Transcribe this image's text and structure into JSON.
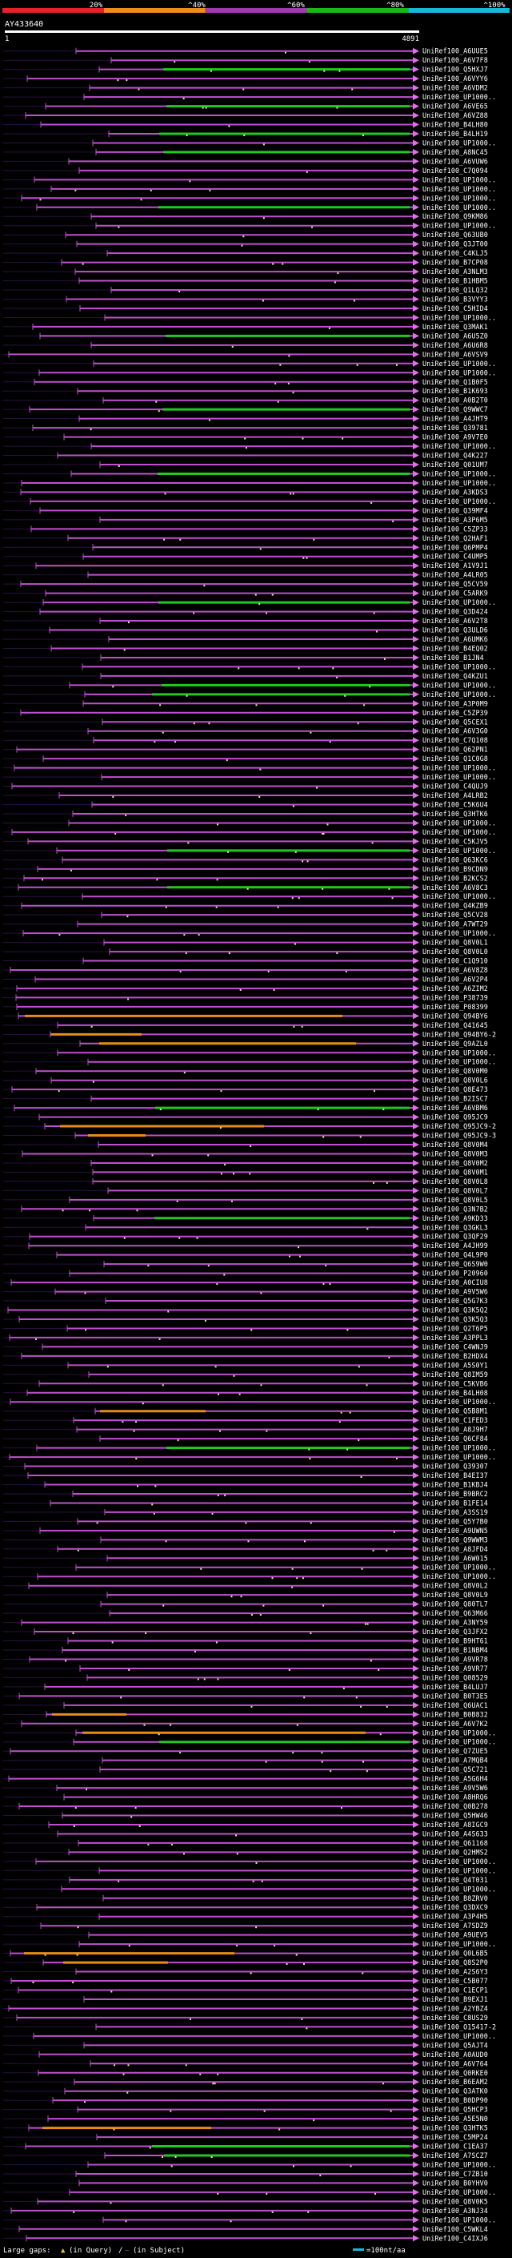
{
  "chart_data": {
    "type": "alignment-overview",
    "query_id": "AY433640",
    "query_start": "1",
    "query_end": "4891",
    "identity_scale": [
      "20%",
      "^40%",
      "^60%",
      "^80%",
      "^100%"
    ],
    "identity_colors": [
      "#e8202a",
      "#f08c1a",
      "#a03ab0",
      "#18b818",
      "#18b8d8"
    ],
    "legend_text": "Large gaps:",
    "legend_in_query": "(in Query)",
    "legend_in_subject": "(in Subject)",
    "legend_scale": "=100nt/aa",
    "hits": [
      {
        "label": "UniRef100_A6UUE5",
        "c": "p"
      },
      {
        "label": "UniRef100_A6V7F8",
        "c": "p"
      },
      {
        "label": "UniRef100_Q5HXJ7",
        "c": "g"
      },
      {
        "label": "UniRef100_A6VYY6",
        "c": "p"
      },
      {
        "label": "UniRef100_A6VDM2",
        "c": "p"
      },
      {
        "label": "UniRef100_UP1000..",
        "c": "p"
      },
      {
        "label": "UniRef100_A6VE65",
        "c": "g"
      },
      {
        "label": "UniRef100_A6VZ88",
        "c": "p"
      },
      {
        "label": "UniRef100_B4LH80",
        "c": "p"
      },
      {
        "label": "UniRef100_B4LH19",
        "c": "g"
      },
      {
        "label": "UniRef100_UP1000..",
        "c": "p"
      },
      {
        "label": "UniRef100_A8NC45",
        "c": "g"
      },
      {
        "label": "UniRef100_A6VUW6",
        "c": "p"
      },
      {
        "label": "UniRef100_C7Q094",
        "c": "p"
      },
      {
        "label": "UniRef100_UP1000..",
        "c": "p"
      },
      {
        "label": "UniRef100_UP1000..",
        "c": "p"
      },
      {
        "label": "UniRef100_UP1000..",
        "c": "p"
      },
      {
        "label": "UniRef100_UP1000..",
        "c": "g"
      },
      {
        "label": "UniRef100_Q9KM86",
        "c": "p"
      },
      {
        "label": "UniRef100_UP1000..",
        "c": "p"
      },
      {
        "label": "UniRef100_Q63UB0",
        "c": "p"
      },
      {
        "label": "UniRef100_Q3JT00",
        "c": "p"
      },
      {
        "label": "UniRef100_C4KLJ5",
        "c": "p"
      },
      {
        "label": "UniRef100_B7CP08",
        "c": "p"
      },
      {
        "label": "UniRef100_A3NLM3",
        "c": "p"
      },
      {
        "label": "UniRef100_B1HBM5",
        "c": "p"
      },
      {
        "label": "UniRef100_Q1LQ32",
        "c": "p"
      },
      {
        "label": "UniRef100_B3VYY3",
        "c": "p"
      },
      {
        "label": "UniRef100_C5HID4",
        "c": "p"
      },
      {
        "label": "UniRef100_UP1000..",
        "c": "p"
      },
      {
        "label": "UniRef100_Q3MAK1",
        "c": "p"
      },
      {
        "label": "UniRef100_A6U5Z0",
        "c": "g"
      },
      {
        "label": "UniRef100_A6U6R8",
        "c": "p"
      },
      {
        "label": "UniRef100_A6VSV9",
        "c": "p"
      },
      {
        "label": "UniRef100_UP1000..",
        "c": "p"
      },
      {
        "label": "UniRef100_UP1000..",
        "c": "p"
      },
      {
        "label": "UniRef100_Q1B0F5",
        "c": "p"
      },
      {
        "label": "UniRef100_B1K693",
        "c": "p"
      },
      {
        "label": "UniRef100_A0B2T0",
        "c": "p"
      },
      {
        "label": "UniRef100_Q9WWC7",
        "c": "g"
      },
      {
        "label": "UniRef100_A4JHT9",
        "c": "p"
      },
      {
        "label": "UniRef100_Q39781",
        "c": "p"
      },
      {
        "label": "UniRef100_A9V7E0",
        "c": "p"
      },
      {
        "label": "UniRef100_UP1000..",
        "c": "p"
      },
      {
        "label": "UniRef100_Q4K227",
        "c": "p"
      },
      {
        "label": "UniRef100_Q01UM7",
        "c": "p"
      },
      {
        "label": "UniRef100_UP1000..",
        "c": "g"
      },
      {
        "label": "UniRef100_UP1000..",
        "c": "p"
      },
      {
        "label": "UniRef100_A3KDS3",
        "c": "p"
      },
      {
        "label": "UniRef100_UP1000..",
        "c": "p"
      },
      {
        "label": "UniRef100_Q39MF4",
        "c": "p"
      },
      {
        "label": "UniRef100_A3P6M5",
        "c": "p"
      },
      {
        "label": "UniRef100_C5ZP33",
        "c": "p"
      },
      {
        "label": "UniRef100_Q2HAF1",
        "c": "p"
      },
      {
        "label": "UniRef100_Q6PMP4",
        "c": "p"
      },
      {
        "label": "UniRef100_C4UMP5",
        "c": "p"
      },
      {
        "label": "UniRef100_A1V9J1",
        "c": "p"
      },
      {
        "label": "UniRef100_A4LR05",
        "c": "p"
      },
      {
        "label": "UniRef100_Q5CV59",
        "c": "p"
      },
      {
        "label": "UniRef100_C5ARK9",
        "c": "p"
      },
      {
        "label": "UniRef100_UP1000..",
        "c": "g"
      },
      {
        "label": "UniRef100_Q3D424",
        "c": "p"
      },
      {
        "label": "UniRef100_A6V2T8",
        "c": "p"
      },
      {
        "label": "UniRef100_Q3ULD6",
        "c": "p"
      },
      {
        "label": "UniRef100_A6UMK6",
        "c": "p"
      },
      {
        "label": "UniRef100_B4EQ02",
        "c": "p"
      },
      {
        "label": "UniRef100_B1JN4",
        "c": "p"
      },
      {
        "label": "UniRef100_UP1000..",
        "c": "p"
      },
      {
        "label": "UniRef100_Q4KZU1",
        "c": "p"
      },
      {
        "label": "UniRef100_UP1000..",
        "c": "g"
      },
      {
        "label": "UniRef100_UP1000..",
        "c": "g"
      },
      {
        "label": "UniRef100_A3P0M9",
        "c": "p"
      },
      {
        "label": "UniRef100_C5ZP39",
        "c": "p"
      },
      {
        "label": "UniRef100_Q5CEX1",
        "c": "p"
      },
      {
        "label": "UniRef100_A6V3G0",
        "c": "p"
      },
      {
        "label": "UniRef100_C7Q108",
        "c": "p"
      },
      {
        "label": "UniRef100_Q62PN1",
        "c": "p"
      },
      {
        "label": "UniRef100_Q1C0G8",
        "c": "p"
      },
      {
        "label": "UniRef100_UP1000..",
        "c": "p"
      },
      {
        "label": "UniRef100_UP1000..",
        "c": "p"
      },
      {
        "label": "UniRef100_C4QUJ9",
        "c": "p"
      },
      {
        "label": "UniRef100_A4LRB2",
        "c": "p"
      },
      {
        "label": "UniRef100_C5K6U4",
        "c": "p"
      },
      {
        "label": "UniRef100_Q3HTK6",
        "c": "p"
      },
      {
        "label": "UniRef100_UP1000..",
        "c": "p"
      },
      {
        "label": "UniRef100_UP1000..",
        "c": "p"
      },
      {
        "label": "UniRef100_C5KJV5",
        "c": "p"
      },
      {
        "label": "UniRef100_UP1000..",
        "c": "g"
      },
      {
        "label": "UniRef100_Q63KC6",
        "c": "p"
      },
      {
        "label": "UniRef100_B9CDN9",
        "c": "p"
      },
      {
        "label": "UniRef100_B2KCS2",
        "c": "p"
      },
      {
        "label": "UniRef100_A6V8C3",
        "c": "g"
      },
      {
        "label": "UniRef100_UP1000..",
        "c": "p"
      },
      {
        "label": "UniRef100_Q4KZB9",
        "c": "p"
      },
      {
        "label": "UniRef100_Q5CV28",
        "c": "p"
      },
      {
        "label": "UniRef100_A7WT29",
        "c": "p"
      },
      {
        "label": "UniRef100_UP1000..",
        "c": "p"
      },
      {
        "label": "UniRef100_Q8V0L1",
        "c": "p"
      },
      {
        "label": "UniRef100_Q8V0L0",
        "c": "p"
      },
      {
        "label": "UniRef100_C1Q910",
        "c": "p"
      },
      {
        "label": "UniRef100_A6V8Z8",
        "c": "p"
      },
      {
        "label": "UniRef100_A6V2P4",
        "c": "p"
      },
      {
        "label": "UniRef100_A6ZIM2",
        "c": "p"
      },
      {
        "label": "UniRef100_P38739",
        "c": "p"
      },
      {
        "label": "UniRef100_P08399",
        "c": "p"
      },
      {
        "label": "UniRef100_Q94BY6",
        "c": "o"
      },
      {
        "label": "UniRef100_Q41645",
        "c": "p"
      },
      {
        "label": "UniRef100_Q94BY6-2",
        "c": "o"
      },
      {
        "label": "UniRef100_Q9AZL0",
        "c": "o"
      },
      {
        "label": "UniRef100_UP1000..",
        "c": "p"
      },
      {
        "label": "UniRef100_UP1000..",
        "c": "p"
      },
      {
        "label": "UniRef100_Q8V0M0",
        "c": "p"
      },
      {
        "label": "UniRef100_Q8V0L6",
        "c": "p"
      },
      {
        "label": "UniRef100_Q8E473",
        "c": "p"
      },
      {
        "label": "UniRef100_B2ISC7",
        "c": "p"
      },
      {
        "label": "UniRef100_A6VBM6",
        "c": "g"
      },
      {
        "label": "UniRef100_Q95JC9",
        "c": "p"
      },
      {
        "label": "UniRef100_Q95JC9-2",
        "c": "o"
      },
      {
        "label": "UniRef100_Q95JC9-3",
        "c": "o"
      },
      {
        "label": "UniRef100_Q8V0M4",
        "c": "p"
      },
      {
        "label": "UniRef100_Q8V0M3",
        "c": "p"
      },
      {
        "label": "UniRef100_Q8V0M2",
        "c": "p"
      },
      {
        "label": "UniRef100_Q8V0M1",
        "c": "p"
      },
      {
        "label": "UniRef100_Q8V0L8",
        "c": "p"
      },
      {
        "label": "UniRef100_Q8V0L7",
        "c": "p"
      },
      {
        "label": "UniRef100_Q8V0L5",
        "c": "p"
      },
      {
        "label": "UniRef100_Q3N7B2",
        "c": "p"
      },
      {
        "label": "UniRef100_A9KD33",
        "c": "g"
      },
      {
        "label": "UniRef100_Q3GKL3",
        "c": "p"
      },
      {
        "label": "UniRef100_Q3QF29",
        "c": "p"
      },
      {
        "label": "UniRef100_A4JH99",
        "c": "p"
      },
      {
        "label": "UniRef100_Q4L9P0",
        "c": "p"
      },
      {
        "label": "UniRef100_Q6S9W0",
        "c": "p"
      },
      {
        "label": "UniRef100_P20960",
        "c": "p"
      },
      {
        "label": "UniRef100_A0CIU8",
        "c": "p"
      },
      {
        "label": "UniRef100_A9V5W6",
        "c": "p"
      },
      {
        "label": "UniRef100_Q5G7K3",
        "c": "p"
      },
      {
        "label": "UniRef100_Q3K5Q2",
        "c": "p"
      },
      {
        "label": "UniRef100_Q3K5Q3",
        "c": "p"
      },
      {
        "label": "UniRef100_Q2T6P5",
        "c": "p"
      },
      {
        "label": "UniRef100_A3PPL3",
        "c": "p"
      },
      {
        "label": "UniRef100_C4WNJ9",
        "c": "p"
      },
      {
        "label": "UniRef100_B2HDX4",
        "c": "p"
      },
      {
        "label": "UniRef100_A5S0Y1",
        "c": "p"
      },
      {
        "label": "UniRef100_Q8IM59",
        "c": "p"
      },
      {
        "label": "UniRef100_C5KVB6",
        "c": "p"
      },
      {
        "label": "UniRef100_B4LH08",
        "c": "p"
      },
      {
        "label": "UniRef100_UP1000..",
        "c": "p"
      },
      {
        "label": "UniRef100_Q5B8M1",
        "c": "o"
      },
      {
        "label": "UniRef100_C1FED3",
        "c": "p"
      },
      {
        "label": "UniRef100_A8J9H7",
        "c": "p"
      },
      {
        "label": "UniRef100_Q6CF84",
        "c": "p"
      },
      {
        "label": "UniRef100_UP1000..",
        "c": "g"
      },
      {
        "label": "UniRef100_UP1000..",
        "c": "p"
      },
      {
        "label": "UniRef100_Q39307",
        "c": "p"
      },
      {
        "label": "UniRef100_B4EI37",
        "c": "p"
      },
      {
        "label": "UniRef100_B1KBJ4",
        "c": "p"
      },
      {
        "label": "UniRef100_B9BRC2",
        "c": "p"
      },
      {
        "label": "UniRef100_B1FE14",
        "c": "p"
      },
      {
        "label": "UniRef100_A3SS19",
        "c": "p"
      },
      {
        "label": "UniRef100_Q5Y7B0",
        "c": "p"
      },
      {
        "label": "UniRef100_A9UWN5",
        "c": "p"
      },
      {
        "label": "UniRef100_Q9WWM3",
        "c": "p"
      },
      {
        "label": "UniRef100_A8JFD4",
        "c": "p"
      },
      {
        "label": "UniRef100_A6W015",
        "c": "p"
      },
      {
        "label": "UniRef100_UP1000..",
        "c": "p"
      },
      {
        "label": "UniRef100_UP1000..",
        "c": "p"
      },
      {
        "label": "UniRef100_Q8V0L2",
        "c": "p"
      },
      {
        "label": "UniRef100_Q8V0L9",
        "c": "p"
      },
      {
        "label": "UniRef100_Q80TL7",
        "c": "p"
      },
      {
        "label": "UniRef100_Q63M66",
        "c": "p"
      },
      {
        "label": "UniRef100_A3NY59",
        "c": "p"
      },
      {
        "label": "UniRef100_Q3JFX2",
        "c": "p"
      },
      {
        "label": "UniRef100_B9HT61",
        "c": "p"
      },
      {
        "label": "UniRef100_B1NBM4",
        "c": "p"
      },
      {
        "label": "UniRef100_A9VR78",
        "c": "p"
      },
      {
        "label": "UniRef100_A9VR77",
        "c": "p"
      },
      {
        "label": "UniRef100_Q08529",
        "c": "p"
      },
      {
        "label": "UniRef100_B4LUJ7",
        "c": "p"
      },
      {
        "label": "UniRef100_B0T3E5",
        "c": "p"
      },
      {
        "label": "UniRef100_Q6UAC1",
        "c": "p"
      },
      {
        "label": "UniRef100_B0B832",
        "c": "o"
      },
      {
        "label": "UniRef100_A6V7K2",
        "c": "p"
      },
      {
        "label": "UniRef100_UP1000..",
        "c": "o"
      },
      {
        "label": "UniRef100_UP1000..",
        "c": "g"
      },
      {
        "label": "UniRef100_Q7ZUE5",
        "c": "p"
      },
      {
        "label": "UniRef100_A7MQB4",
        "c": "p"
      },
      {
        "label": "UniRef100_Q5C721",
        "c": "p"
      },
      {
        "label": "UniRef100_A5G6H4",
        "c": "p"
      },
      {
        "label": "UniRef100_A9V5W6",
        "c": "p"
      },
      {
        "label": "UniRef100_A8HRQ6",
        "c": "p"
      },
      {
        "label": "UniRef100_Q0B278",
        "c": "p"
      },
      {
        "label": "UniRef100_Q5HW46",
        "c": "p"
      },
      {
        "label": "UniRef100_A8IGC9",
        "c": "p"
      },
      {
        "label": "UniRef100_A4S633",
        "c": "p"
      },
      {
        "label": "UniRef100_Q61168",
        "c": "p"
      },
      {
        "label": "UniRef100_Q2HMS2",
        "c": "p"
      },
      {
        "label": "UniRef100_UP1000..",
        "c": "p"
      },
      {
        "label": "UniRef100_UP1000..",
        "c": "p"
      },
      {
        "label": "UniRef100_Q4T031",
        "c": "p"
      },
      {
        "label": "UniRef100_UP1000..",
        "c": "p"
      },
      {
        "label": "UniRef100_B8ZRV0",
        "c": "p"
      },
      {
        "label": "UniRef100_Q3DXC9",
        "c": "p"
      },
      {
        "label": "UniRef100_A3P4H5",
        "c": "p"
      },
      {
        "label": "UniRef100_A7SDZ9",
        "c": "p"
      },
      {
        "label": "UniRef100_A9UEV5",
        "c": "p"
      },
      {
        "label": "UniRef100_UP1000..",
        "c": "p"
      },
      {
        "label": "UniRef100_Q0L6B5",
        "c": "o"
      },
      {
        "label": "UniRef100_Q8S2P0",
        "c": "o"
      },
      {
        "label": "UniRef100_A2S6Y3",
        "c": "p"
      },
      {
        "label": "UniRef100_C5B077",
        "c": "p"
      },
      {
        "label": "UniRef100_C1ECP1",
        "c": "p"
      },
      {
        "label": "UniRef100_B9EXJ1",
        "c": "p"
      },
      {
        "label": "UniRef100_A2YBZ4",
        "c": "p"
      },
      {
        "label": "UniRef100_C8US29",
        "c": "p"
      },
      {
        "label": "UniRef100_O15417-2",
        "c": "p"
      },
      {
        "label": "UniRef100_UP1000..",
        "c": "p"
      },
      {
        "label": "UniRef100_Q5AJT4",
        "c": "p"
      },
      {
        "label": "UniRef100_A0AUD0",
        "c": "p"
      },
      {
        "label": "UniRef100_A6V764",
        "c": "p"
      },
      {
        "label": "UniRef100_Q0RKE0",
        "c": "p"
      },
      {
        "label": "UniRef100_B6EAM2",
        "c": "p"
      },
      {
        "label": "UniRef100_Q3ATK0",
        "c": "p"
      },
      {
        "label": "UniRef100_B0DP90",
        "c": "p"
      },
      {
        "label": "UniRef100_Q5HCP3",
        "c": "p"
      },
      {
        "label": "UniRef100_A5E5N0",
        "c": "p"
      },
      {
        "label": "UniRef100_Q3HTK5",
        "c": "o"
      },
      {
        "label": "UniRef100_C5MP24",
        "c": "p"
      },
      {
        "label": "UniRef100_C1EA37",
        "c": "g"
      },
      {
        "label": "UniRef100_A7SCZ7",
        "c": "g"
      },
      {
        "label": "UniRef100_UP1000..",
        "c": "p"
      },
      {
        "label": "UniRef100_C7ZB10",
        "c": "p"
      },
      {
        "label": "UniRef100_B0YHV0",
        "c": "p"
      },
      {
        "label": "UniRef100_UP1000..",
        "c": "p"
      },
      {
        "label": "UniRef100_Q8V0K5",
        "c": "p"
      },
      {
        "label": "UniRef100_A3NJ34",
        "c": "p"
      },
      {
        "label": "UniRef100_UP1000..",
        "c": "p"
      },
      {
        "label": "UniRef100_C5WKL4",
        "c": "p"
      },
      {
        "label": "UniRef100_C4IXJ6",
        "c": "p"
      }
    ]
  }
}
